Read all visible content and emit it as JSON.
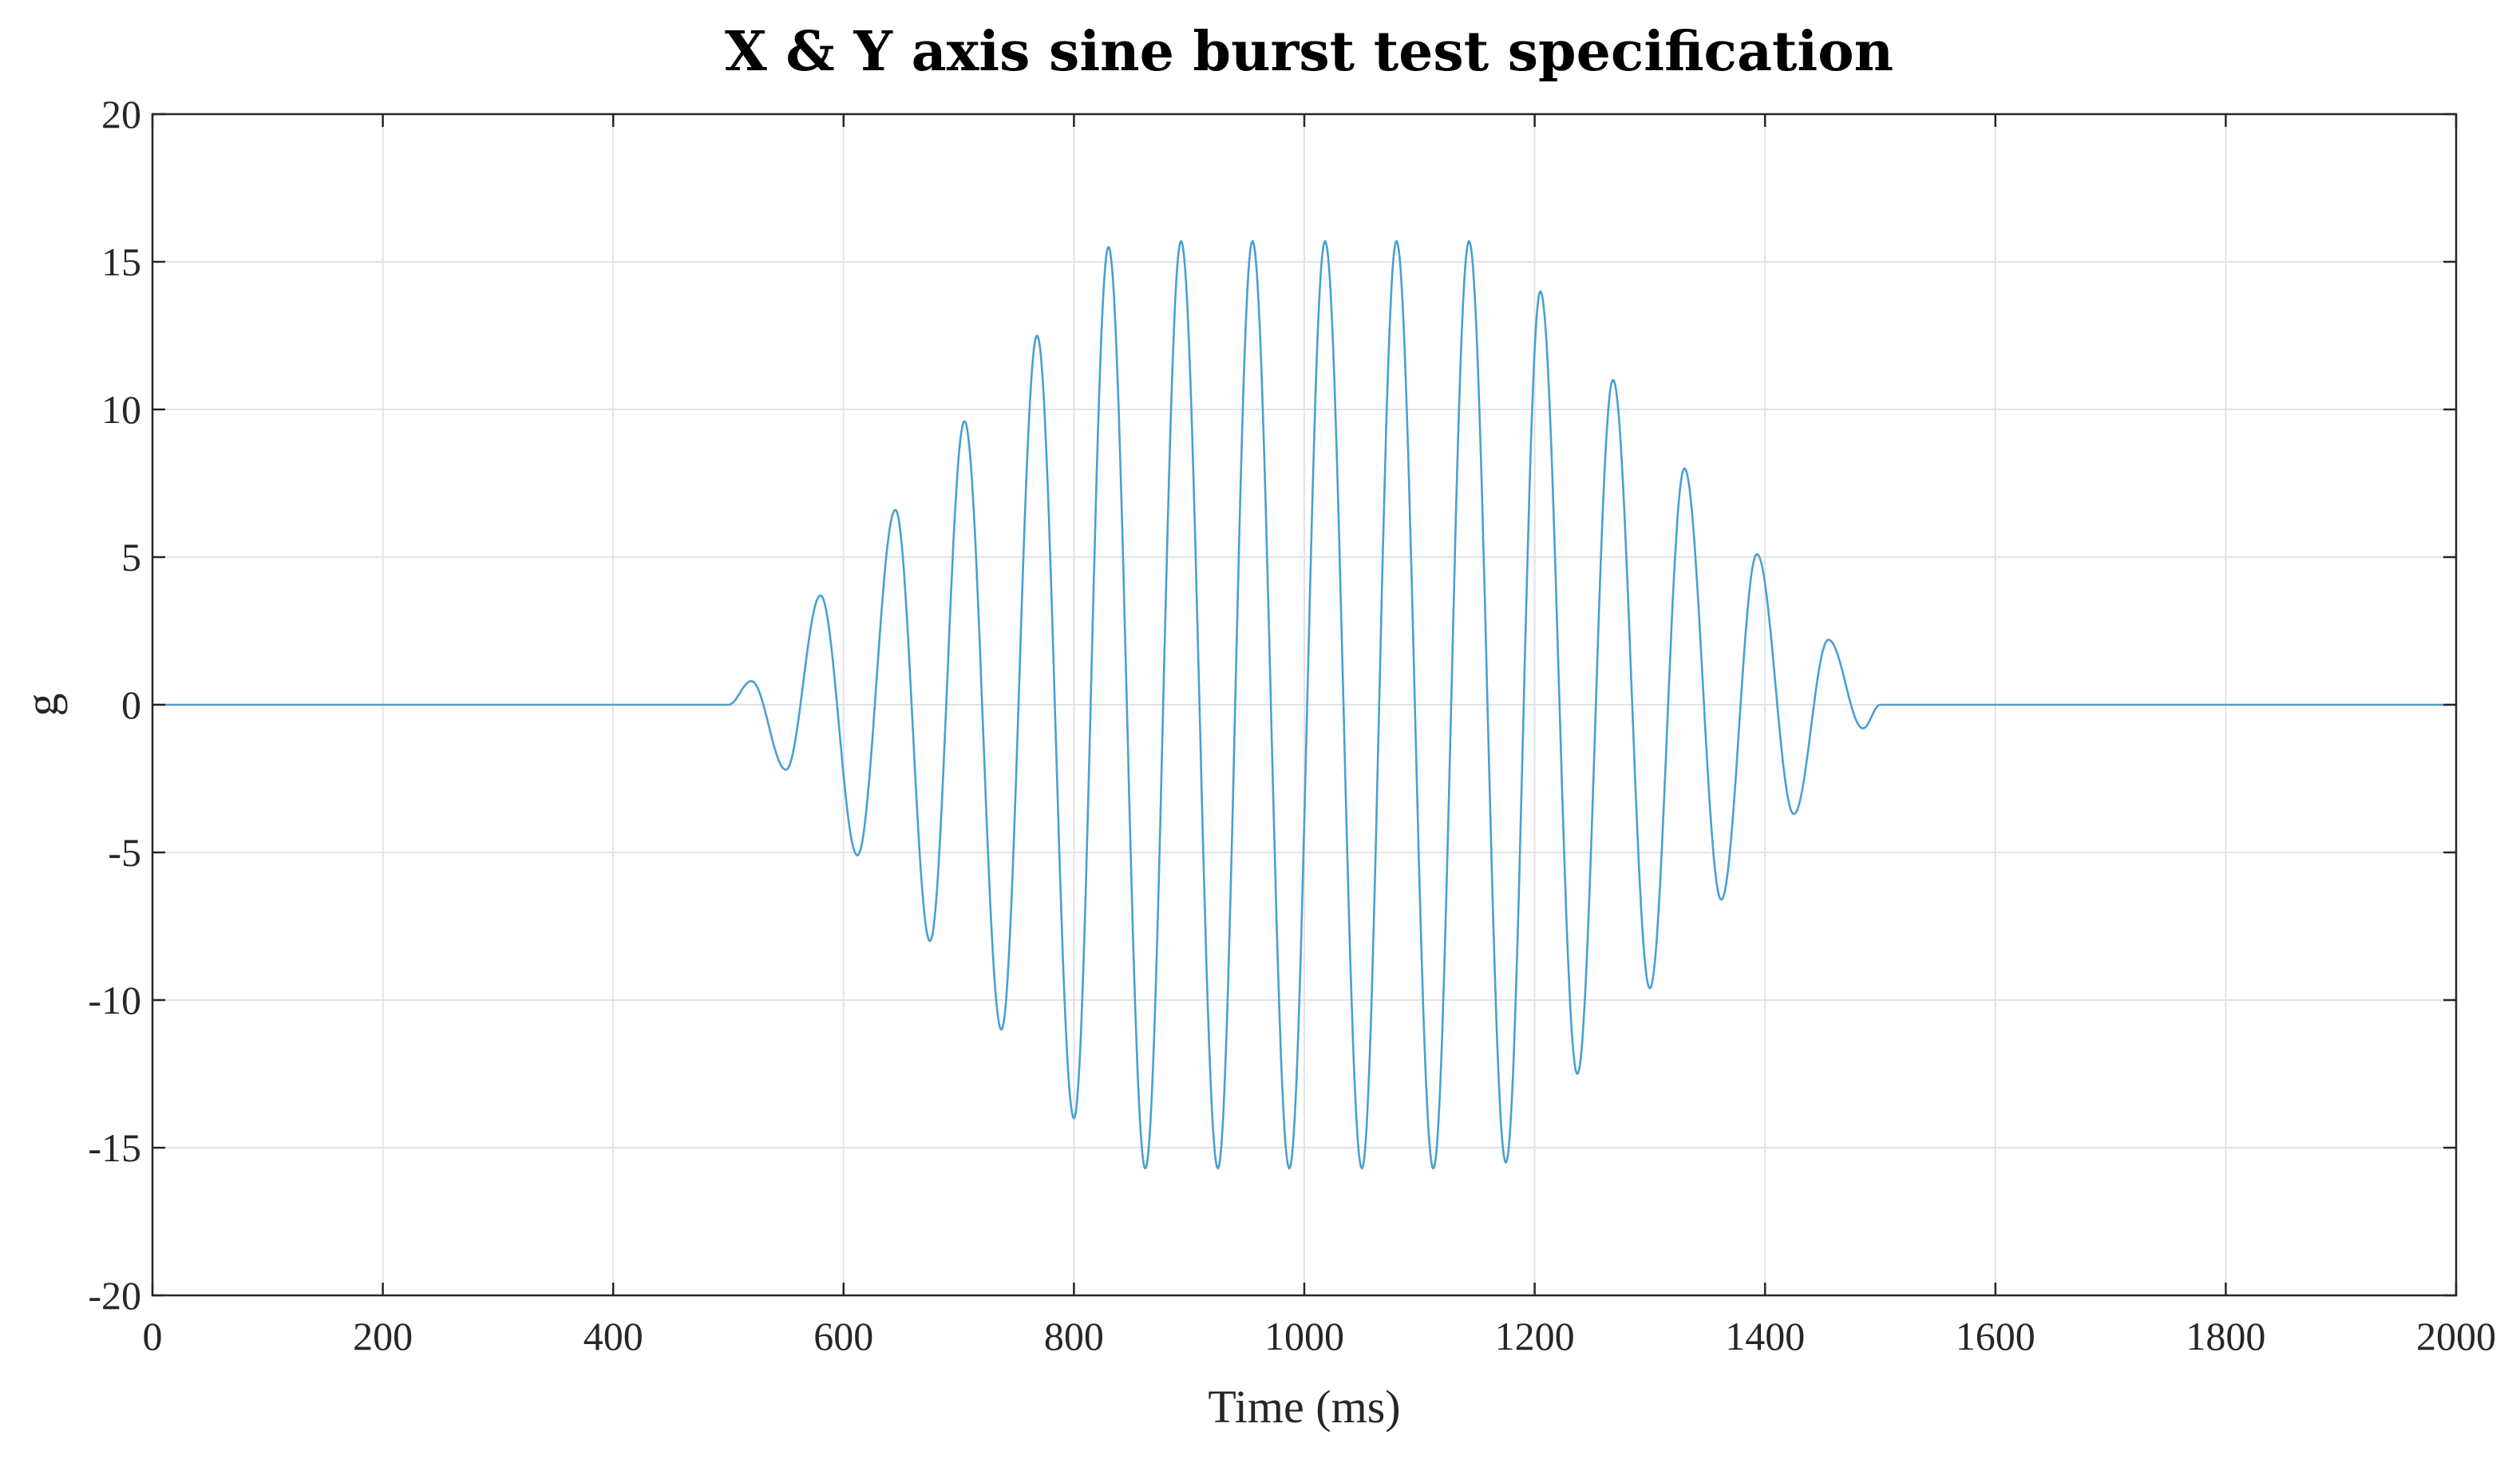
{
  "chart_data": {
    "type": "line",
    "title": "X & Y axis sine burst test specification",
    "xlabel": "Time (ms)",
    "ylabel": "g",
    "xlim": [
      0,
      2000
    ],
    "ylim": [
      -20,
      20
    ],
    "xticks": [
      0,
      200,
      400,
      600,
      800,
      1000,
      1200,
      1400,
      1600,
      1800,
      2000
    ],
    "yticks": [
      20,
      15,
      10,
      5,
      0,
      -5,
      -10,
      -15,
      -20
    ],
    "grid": true,
    "series_color": "#4a9fd4",
    "series": [
      {
        "x": [
          0,
          500,
          520,
          550,
          580,
          612,
          645,
          675,
          705,
          737,
          768,
          800,
          830,
          862,
          893,
          925,
          955,
          987,
          1018,
          1050,
          1080,
          1112,
          1143,
          1175,
          1205,
          1237,
          1268,
          1300,
          1330,
          1362,
          1393,
          1425,
          1455,
          1485,
          1500,
          2000
        ],
        "y": [
          0,
          0,
          0.8,
          -2.2,
          3.7,
          -5.1,
          6.6,
          -8.0,
          9.6,
          -11.0,
          12.5,
          -14.0,
          15.5,
          -15.7,
          15.7,
          -15.7,
          15.7,
          -15.7,
          15.7,
          -15.7,
          15.7,
          -15.7,
          15.7,
          -15.5,
          14.0,
          -12.5,
          11.0,
          -9.6,
          8.0,
          -6.6,
          5.1,
          -3.7,
          2.2,
          -0.8,
          0,
          0
        ]
      }
    ]
  }
}
